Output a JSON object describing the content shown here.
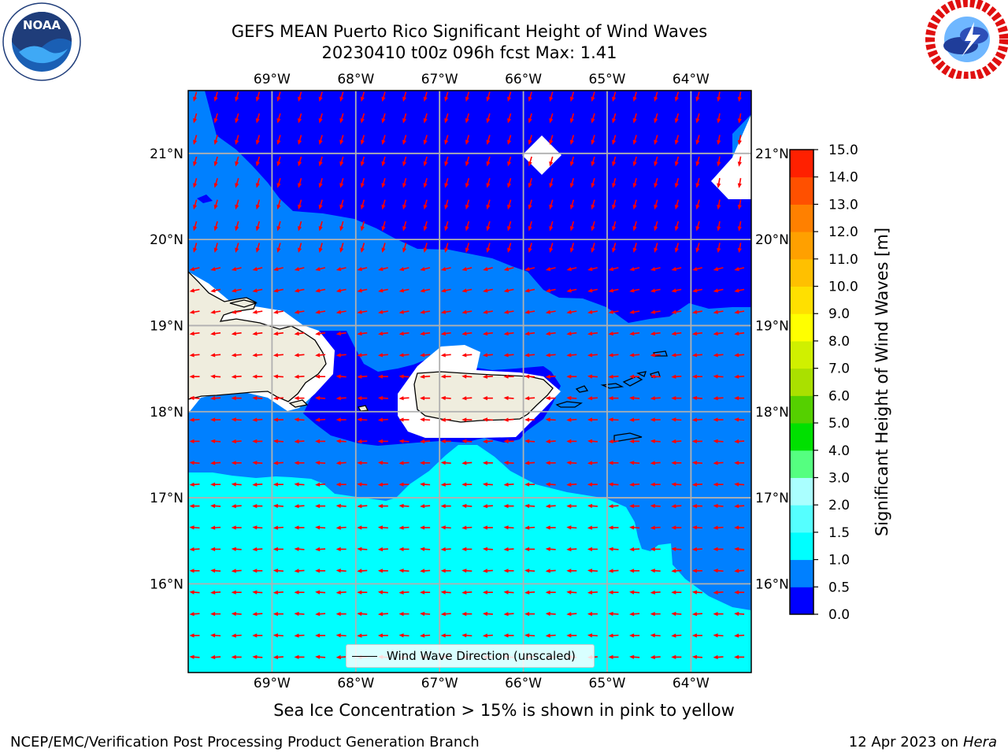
{
  "title": {
    "line1": "GEFS MEAN Puerto Rico Significant Height of Wind Waves",
    "line2": "20230410 t00z 096h fcst   Max: 1.41"
  },
  "map": {
    "lon_ticks": [
      "69°W",
      "68°W",
      "67°W",
      "66°W",
      "65°W",
      "64°W"
    ],
    "lat_ticks": [
      "21°N",
      "20°N",
      "19°N",
      "18°N",
      "17°N",
      "16°N"
    ],
    "lon_range": [
      -70.0,
      -63.28
    ],
    "lat_range": [
      14.97,
      21.73
    ],
    "land_color": "#efedde",
    "arrow_color": "#ff0000"
  },
  "colorbar": {
    "label": "Significant Height of Wind Waves [m]",
    "ticks": [
      "0.0",
      "0.5",
      "1.0",
      "1.5",
      "2.0",
      "3.0",
      "4.0",
      "5.0",
      "6.0",
      "7.0",
      "8.0",
      "9.0",
      "10.0",
      "11.0",
      "12.0",
      "13.0",
      "14.0",
      "15.0"
    ],
    "colors": [
      "#0000ff",
      "#0080ff",
      "#00ffff",
      "#55ffff",
      "#aaffff",
      "#55ff80",
      "#00e000",
      "#55d000",
      "#aae000",
      "#d0f000",
      "#ffff00",
      "#ffe000",
      "#ffc000",
      "#ffa000",
      "#ff8000",
      "#ff5000",
      "#ff2000"
    ]
  },
  "legend": {
    "label": "Wind Wave Direction (unscaled)"
  },
  "ice_note": "Sea Ice Concentration > 15% is shown in pink to yellow",
  "footer": {
    "left": "NCEP/EMC/Verification Post Processing Product Generation Branch",
    "right_date": "12 Apr 2023 on ",
    "right_host": "Hera"
  },
  "logos": {
    "left": "noaa-logo",
    "right": "nws-logo"
  }
}
